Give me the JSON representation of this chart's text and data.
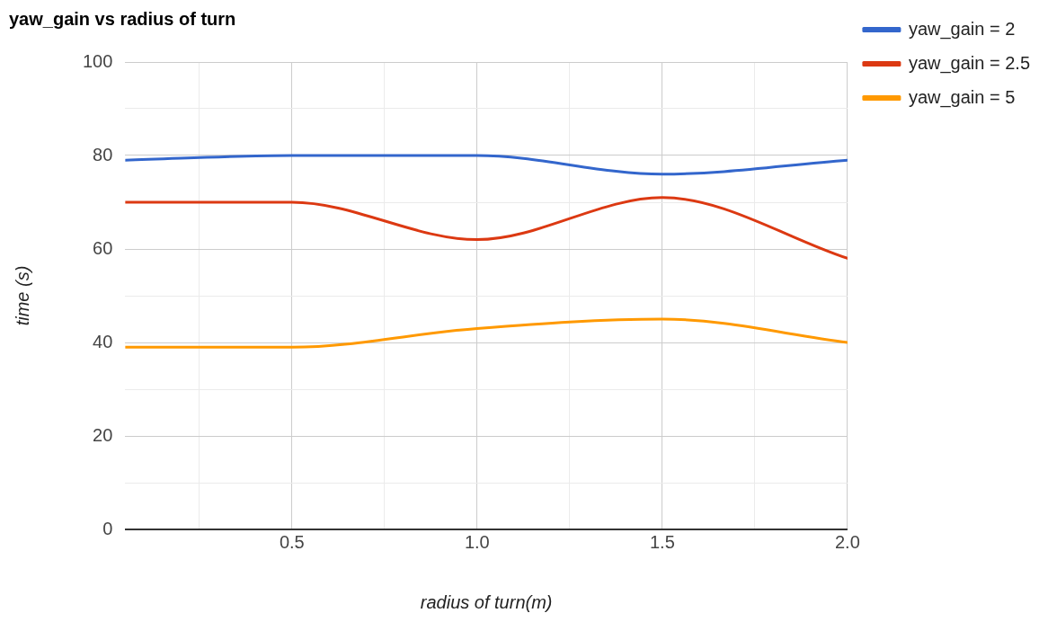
{
  "chart_data": {
    "type": "line",
    "title": "yaw_gain vs radius of turn",
    "xlabel": "radius of turn(m)",
    "ylabel": "time (s)",
    "x": [
      0.05,
      0.5,
      1.0,
      1.5,
      2.0
    ],
    "series": [
      {
        "name": "yaw_gain = 2",
        "color": "#3366cc",
        "values": [
          79,
          80,
          80,
          76,
          79
        ]
      },
      {
        "name": "yaw_gain = 2.5",
        "color": "#dc3912",
        "values": [
          70,
          70,
          62,
          71,
          58
        ]
      },
      {
        "name": "yaw_gain = 5",
        "color": "#ff9900",
        "values": [
          39,
          39,
          43,
          45,
          40
        ]
      }
    ],
    "xlim": [
      0.05,
      2.0
    ],
    "xticks": [
      {
        "value": 0.25,
        "label": null
      },
      {
        "value": 0.5,
        "label": "0.5"
      },
      {
        "value": 0.75,
        "label": null
      },
      {
        "value": 1.0,
        "label": "1.0"
      },
      {
        "value": 1.25,
        "label": null
      },
      {
        "value": 1.5,
        "label": "1.5"
      },
      {
        "value": 1.75,
        "label": null
      },
      {
        "value": 2.0,
        "label": "2.0"
      }
    ],
    "ylim": [
      0,
      100
    ],
    "yticks": [
      0,
      {
        "value": 10,
        "label": null
      },
      20,
      {
        "value": 30,
        "label": null
      },
      40,
      {
        "value": 50,
        "label": null
      },
      60,
      {
        "value": 70,
        "label": null
      },
      80,
      {
        "value": 90,
        "label": null
      },
      100
    ],
    "grid": true,
    "legend": "right",
    "marker": "none",
    "line_style": "solid"
  }
}
